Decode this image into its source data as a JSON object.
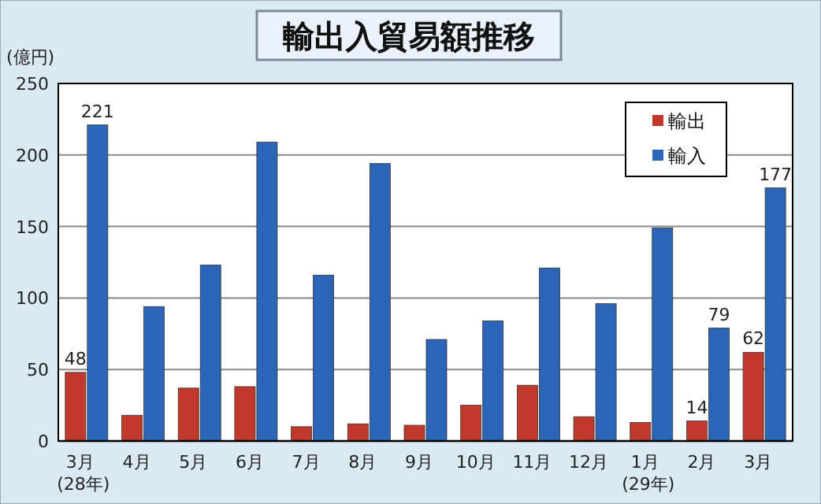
{
  "chart_data": {
    "type": "bar",
    "title": "輸出入貿易額推移",
    "ylabel": "(億円)",
    "categories": [
      "3月\n(28年)",
      "4月",
      "5月",
      "6月",
      "7月",
      "8月",
      "9月",
      "10月",
      "11月",
      "12月",
      "1月\n(29年)",
      "2月",
      "3月"
    ],
    "series": [
      {
        "name": "輸出",
        "color": "#c0392b",
        "values": [
          48,
          18,
          37,
          38,
          10,
          12,
          11,
          25,
          39,
          17,
          13,
          14,
          62
        ],
        "value_labels": [
          "48",
          null,
          null,
          null,
          null,
          null,
          null,
          null,
          null,
          null,
          null,
          "14",
          "62"
        ]
      },
      {
        "name": "輸入",
        "color": "#2a65b8",
        "values": [
          221,
          94,
          123,
          209,
          116,
          194,
          71,
          84,
          121,
          96,
          149,
          79,
          177
        ],
        "value_labels": [
          "221",
          null,
          null,
          null,
          null,
          null,
          null,
          null,
          null,
          null,
          null,
          "79",
          "177"
        ]
      }
    ],
    "ylim": [
      0,
      250
    ],
    "yticks": [
      0,
      50,
      100,
      150,
      200,
      250
    ],
    "grid": "y",
    "legend": "top right"
  }
}
